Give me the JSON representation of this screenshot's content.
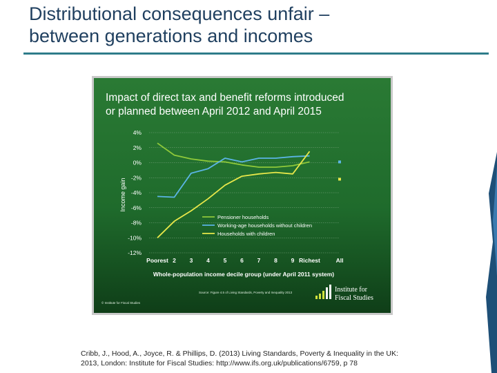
{
  "slide": {
    "title_line1": "Distributional consequences unfair –",
    "title_line2": "between generations and incomes",
    "citation_line1": "Cribb, J., Hood, A., Joyce, R. & Phillips, D. (2013) Living Standards, Poverty & Inequality in the UK:",
    "citation_line2": "2013, London: Institute for Fiscal Studies:  http://www.ifs.org.uk/publications/6759, p 78"
  },
  "chart_data": {
    "type": "line",
    "title_line1": "Impact of direct tax and benefit reforms introduced",
    "title_line2": "or planned between April 2012 and April 2015",
    "xlabel": "Whole-population income decile group (under April 2011 system)",
    "ylabel": "Income gain",
    "categories": [
      "Poorest",
      "2",
      "3",
      "4",
      "5",
      "6",
      "7",
      "8",
      "9",
      "Richest"
    ],
    "all_label": "All",
    "y_ticks": [
      4,
      2,
      0,
      -2,
      -4,
      -6,
      -8,
      -10,
      -12
    ],
    "y_tick_labels": [
      "4%",
      "2%",
      "0%",
      "-2%",
      "-4%",
      "-6%",
      "-8%",
      "-10%",
      "-12%"
    ],
    "ylim": [
      -12,
      4
    ],
    "grid": true,
    "legend_position": "bottom-right",
    "series": [
      {
        "name": "Pensioner households",
        "color": "#8fc93a",
        "values": [
          2.6,
          1.0,
          0.5,
          0.2,
          0.1,
          -0.3,
          -0.6,
          -0.6,
          -0.4,
          0.1
        ],
        "all": 0.1
      },
      {
        "name": "Working-age households without children",
        "color": "#5bb5e6",
        "values": [
          -4.5,
          -4.6,
          -1.4,
          -0.8,
          0.6,
          0.1,
          0.6,
          0.6,
          0.8,
          0.9
        ],
        "all": 0.1
      },
      {
        "name": "Households with children",
        "color": "#e8e84a",
        "values": [
          -10.0,
          -7.8,
          -6.4,
          -4.8,
          -3.0,
          -1.8,
          -1.5,
          -1.3,
          -1.5,
          1.5
        ],
        "all": -2.2
      }
    ],
    "source_note": "Source: Figure 4.5 of Living Standards, Poverty and Inequality 2013",
    "copyright": "© Institute for Fiscal Studies",
    "logo_line1": "Institute for",
    "logo_line2": "Fiscal Studies",
    "colors": {
      "background": "#1f6b2c",
      "background_dark": "#0f3e18",
      "text": "#ffffff",
      "grid": "#7fa883"
    }
  }
}
